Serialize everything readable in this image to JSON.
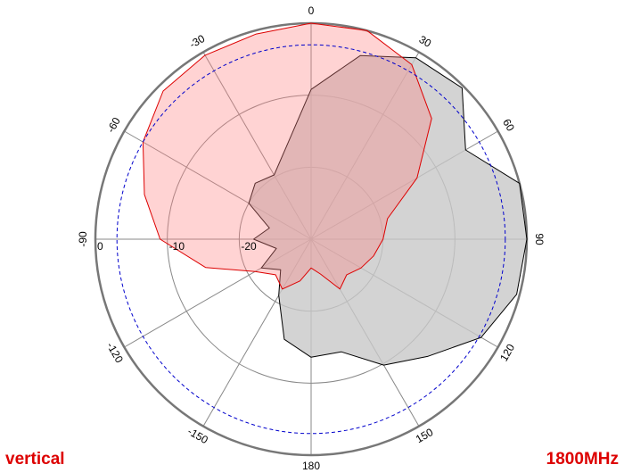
{
  "chart_data": {
    "type": "polar",
    "theta": [
      -165,
      -150,
      -135,
      -120,
      -105,
      -90,
      -75,
      -60,
      -45,
      -30,
      -15,
      0,
      15,
      30,
      45,
      60,
      75,
      90,
      105,
      120,
      135,
      150,
      165,
      180
    ],
    "series": [
      {
        "color": "#000000",
        "fill": "#c8c8c8",
        "values": [
          -15.6,
          -21,
          -24,
          -22,
          -25,
          -22,
          -24,
          -20,
          -19,
          -19.7,
          -16.7,
          -9.2,
          -3.6,
          -0.9,
          -0.3,
          -5.2,
          0,
          0,
          -0.4,
          -2.7,
          -7,
          -9.8,
          -13.8,
          -13.6
        ]
      },
      {
        "color": "#dd0000",
        "fill": "#ff8080",
        "values": [
          -24,
          -22,
          -23,
          -21,
          -14.8,
          -9,
          -6,
          -3,
          -0.9,
          -0.5,
          -0.5,
          0,
          0,
          -2,
          -6.3,
          -13,
          -19,
          -20,
          -21,
          -22,
          -23,
          -22,
          -25,
          -26
        ]
      }
    ],
    "rlim": [
      -30,
      0
    ],
    "rticks": [
      -20,
      -10,
      0
    ],
    "thetaticks": [
      0,
      30,
      60,
      90,
      120,
      150,
      180,
      -150,
      -120,
      -90,
      -60,
      -30
    ],
    "reference_ring": -3,
    "annotations": [
      "vertical",
      "1800MHz"
    ]
  }
}
